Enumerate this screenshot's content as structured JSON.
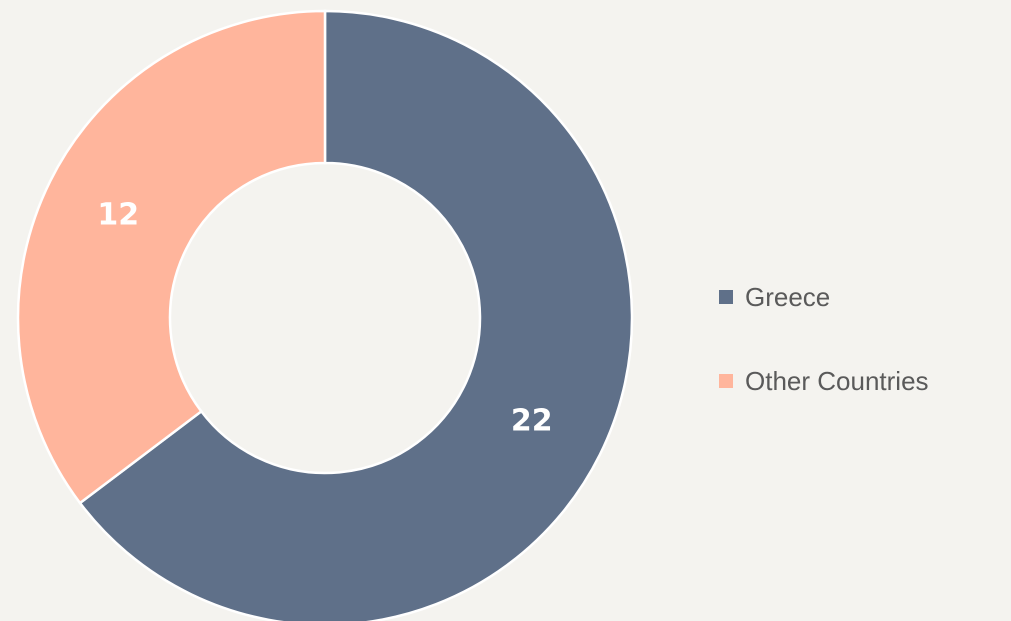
{
  "chart_data": {
    "type": "donut",
    "categories": [
      "Greece",
      "Other Countries"
    ],
    "values": [
      22,
      12
    ],
    "colors": [
      "#5f7089",
      "#ffb59c"
    ],
    "legend": "right"
  }
}
